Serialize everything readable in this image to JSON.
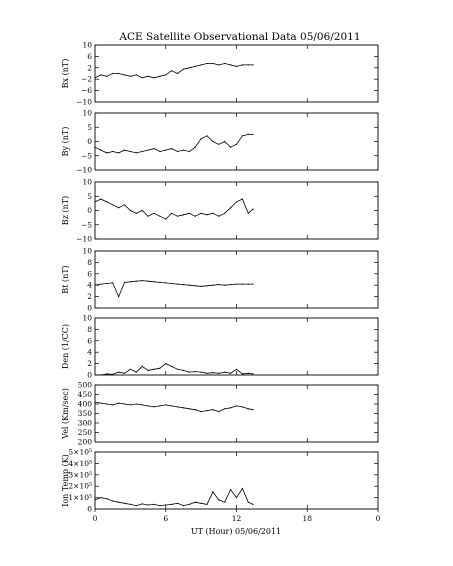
{
  "chart_data": {
    "title": "ACE Satellite Observational Data   05/06/2011",
    "xlabel": "UT (Hour)   05/06/2011",
    "x_ticks": [
      "0",
      "6",
      "12",
      "18",
      "0"
    ],
    "xlim": [
      0,
      24
    ],
    "panels": [
      {
        "type": "line",
        "ylabel": "Bx (nT)",
        "ylim": [
          -10,
          10
        ],
        "yticks": [
          "10",
          "6",
          "2",
          "−2",
          "−6",
          "−10"
        ],
        "ytick_values": [
          10,
          6,
          2,
          -2,
          -6,
          -10
        ],
        "x": [
          0,
          0.5,
          1,
          1.5,
          2,
          2.5,
          3,
          3.5,
          4,
          4.5,
          5,
          5.5,
          6,
          6.5,
          7,
          7.5,
          8,
          8.5,
          9,
          9.5,
          10,
          10.5,
          11,
          11.5,
          12,
          12.5,
          13,
          13.4
        ],
        "values": [
          -1.5,
          -0.5,
          -1,
          0,
          0,
          -0.5,
          -1,
          -0.5,
          -1.5,
          -1,
          -1.5,
          -1,
          -0.5,
          1,
          0,
          1.5,
          2,
          2.5,
          3,
          3.5,
          3.5,
          3,
          3.5,
          3,
          2.5,
          3,
          3,
          3
        ]
      },
      {
        "type": "line",
        "ylabel": "By (nT)",
        "ylim": [
          -10,
          10
        ],
        "yticks": [
          "10",
          "5",
          "0",
          "−5",
          "−10"
        ],
        "ytick_values": [
          10,
          5,
          0,
          -5,
          -10
        ],
        "x": [
          0,
          0.5,
          1,
          1.5,
          2,
          2.5,
          3,
          3.5,
          4,
          4.5,
          5,
          5.5,
          6,
          6.5,
          7,
          7.5,
          8,
          8.5,
          9,
          9.5,
          10,
          10.5,
          11,
          11.5,
          12,
          12.5,
          13,
          13.4
        ],
        "values": [
          -2,
          -3,
          -4,
          -3.5,
          -4,
          -3,
          -3.5,
          -4,
          -3.5,
          -3,
          -2.5,
          -3.5,
          -3,
          -2.5,
          -3.5,
          -3,
          -3.5,
          -2,
          1,
          2,
          0,
          -1,
          0,
          -2,
          -1,
          2,
          2.5,
          2.5
        ]
      },
      {
        "type": "line",
        "ylabel": "Bz (nT)",
        "ylim": [
          -10,
          10
        ],
        "yticks": [
          "10",
          "5",
          "0",
          "−5",
          "−10"
        ],
        "ytick_values": [
          10,
          5,
          0,
          -5,
          -10
        ],
        "x": [
          0,
          0.5,
          1,
          1.5,
          2,
          2.5,
          3,
          3.5,
          4,
          4.5,
          5,
          5.5,
          6,
          6.5,
          7,
          7.5,
          8,
          8.5,
          9,
          9.5,
          10,
          10.5,
          11,
          11.5,
          12,
          12.5,
          13,
          13.4
        ],
        "values": [
          3,
          4,
          3,
          2,
          1,
          2,
          0,
          -1,
          0,
          -2,
          -1,
          -2,
          -3,
          -1,
          -2,
          -1.5,
          -1,
          -2,
          -1,
          -1.5,
          -1,
          -2,
          -1,
          1,
          3,
          4,
          -1,
          0.5
        ]
      },
      {
        "type": "line",
        "ylabel": "Bt (nT)",
        "ylim": [
          0,
          10
        ],
        "yticks": [
          "10",
          "8",
          "6",
          "4",
          "2",
          "0"
        ],
        "ytick_values": [
          10,
          8,
          6,
          4,
          2,
          0
        ],
        "x": [
          0,
          0.5,
          1,
          1.5,
          2,
          2.5,
          3,
          3.5,
          4,
          4.5,
          5,
          5.5,
          6,
          6.5,
          7,
          7.5,
          8,
          8.5,
          9,
          9.5,
          10,
          10.5,
          11,
          11.5,
          12,
          12.5,
          13,
          13.4
        ],
        "values": [
          4,
          4.2,
          4.3,
          4.4,
          2,
          4.5,
          4.6,
          4.7,
          4.8,
          4.7,
          4.6,
          4.5,
          4.4,
          4.3,
          4.2,
          4.1,
          4,
          3.9,
          3.8,
          3.9,
          4,
          4.1,
          4,
          4.1,
          4.2,
          4.2,
          4.2,
          4.2
        ]
      },
      {
        "type": "line",
        "ylabel": "Den (1/CC)",
        "ylim": [
          0,
          10
        ],
        "yticks": [
          "10",
          "8",
          "6",
          "4",
          "2",
          "0"
        ],
        "ytick_values": [
          10,
          8,
          6,
          4,
          2,
          0
        ],
        "x": [
          0,
          0.5,
          1,
          1.5,
          2,
          2.5,
          3,
          3.5,
          4,
          4.5,
          5,
          5.5,
          6,
          6.5,
          7,
          7.5,
          8,
          8.5,
          9,
          9.5,
          10,
          10.5,
          11,
          11.5,
          12,
          12.5,
          13,
          13.4
        ],
        "values": [
          0,
          0,
          0.2,
          0.1,
          0.5,
          0.3,
          1,
          0.5,
          1.5,
          0.8,
          1,
          1.2,
          2,
          1.5,
          1,
          0.8,
          0.5,
          0.6,
          0.5,
          0.3,
          0.4,
          0.3,
          0.5,
          0.3,
          1,
          0.2,
          0.3,
          0.2
        ]
      },
      {
        "type": "line",
        "ylabel": "Vel (Km/sec)",
        "ylim": [
          200,
          500
        ],
        "yticks": [
          "500",
          "450",
          "400",
          "350",
          "300",
          "250",
          "200"
        ],
        "ytick_values": [
          500,
          450,
          400,
          350,
          300,
          250,
          200
        ],
        "x": [
          0,
          0.5,
          1,
          1.5,
          2,
          2.5,
          3,
          3.5,
          4,
          4.5,
          5,
          5.5,
          6,
          6.5,
          7,
          7.5,
          8,
          8.5,
          9,
          9.5,
          10,
          10.5,
          11,
          11.5,
          12,
          12.5,
          13,
          13.4
        ],
        "values": [
          410,
          405,
          400,
          395,
          405,
          400,
          395,
          400,
          395,
          390,
          385,
          390,
          395,
          390,
          385,
          380,
          375,
          370,
          360,
          365,
          370,
          360,
          375,
          380,
          390,
          385,
          375,
          370
        ]
      },
      {
        "type": "line",
        "ylabel": "Ion Temp (K)",
        "ylim": [
          0,
          500000
        ],
        "yticks": [
          "5×10⁵",
          "4×10⁵",
          "3×10⁵",
          "2×10⁵",
          "1×10⁵",
          "0"
        ],
        "ytick_values": [
          500000,
          400000,
          300000,
          200000,
          100000,
          0
        ],
        "x": [
          0,
          0.5,
          1,
          1.5,
          2,
          2.5,
          3,
          3.5,
          4,
          4.5,
          5,
          5.5,
          6,
          6.5,
          7,
          7.5,
          8,
          8.5,
          9,
          9.5,
          10,
          10.5,
          11,
          11.5,
          12,
          12.5,
          13,
          13.4
        ],
        "values": [
          80000,
          100000,
          90000,
          70000,
          60000,
          50000,
          40000,
          30000,
          45000,
          35000,
          40000,
          30000,
          35000,
          40000,
          50000,
          30000,
          40000,
          60000,
          50000,
          40000,
          150000,
          80000,
          60000,
          170000,
          100000,
          180000,
          60000,
          40000
        ]
      }
    ]
  }
}
